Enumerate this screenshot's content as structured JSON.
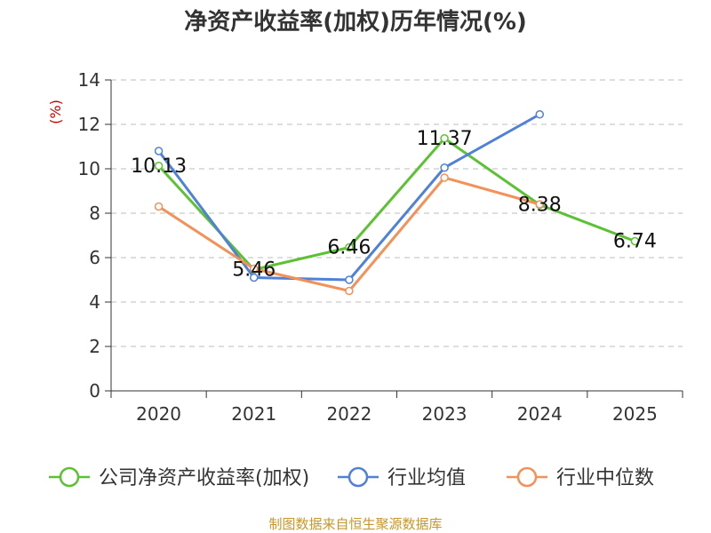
{
  "chart_data": {
    "type": "line",
    "title": "净资产收益率(加权)历年情况(%)",
    "ylabel": "(%)",
    "ylabel_color": "#cc0000",
    "ylim": [
      0,
      14
    ],
    "yticks": [
      0,
      2,
      4,
      6,
      8,
      10,
      12,
      14
    ],
    "categories": [
      "2020",
      "2021",
      "2022",
      "2023",
      "2024",
      "2025"
    ],
    "series": [
      {
        "name": "公司净资产收益率(加权)",
        "color": "#5cc234",
        "values": [
          10.13,
          5.46,
          6.46,
          11.37,
          8.38,
          6.74
        ],
        "labels": [
          "10.13",
          "5.46",
          "6.46",
          "11.37",
          "8.38",
          "6.74"
        ]
      },
      {
        "name": "行业均值",
        "color": "#4f81d7",
        "values": [
          10.8,
          5.1,
          5.0,
          10.05,
          12.45,
          null
        ]
      },
      {
        "name": "行业中位数",
        "color": "#f29158",
        "values": [
          8.3,
          5.5,
          4.5,
          9.6,
          8.4,
          null
        ]
      }
    ],
    "grid": true,
    "legend": "bottom"
  },
  "source": {
    "text": "制图数据来自恒生聚源数据库",
    "color": "#c8962a"
  }
}
